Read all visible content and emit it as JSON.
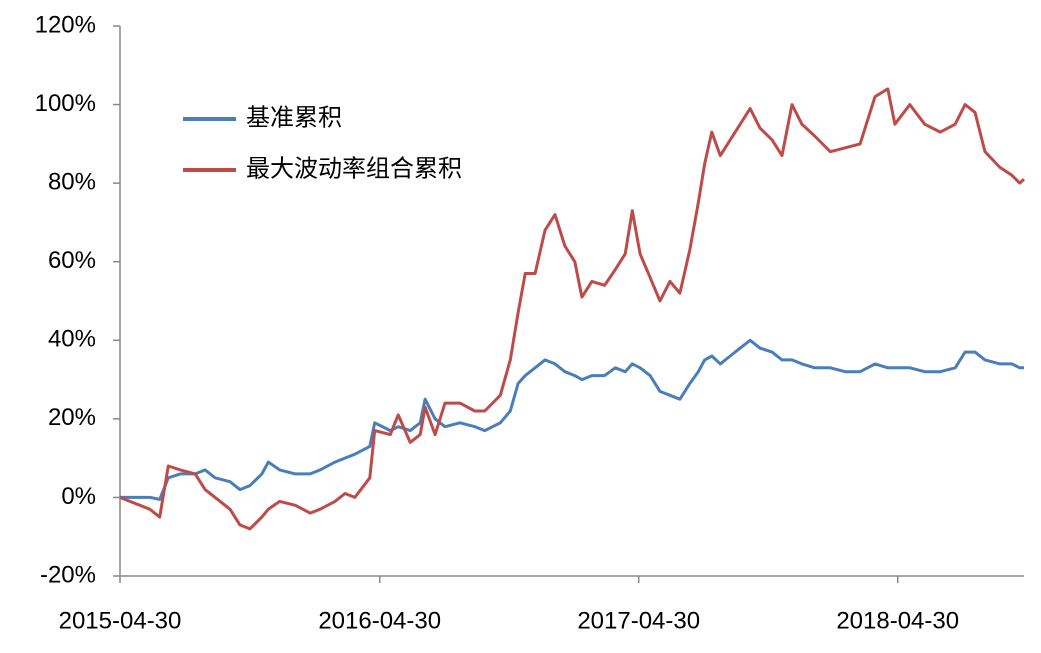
{
  "chart_data": {
    "type": "line",
    "x": [
      "2015-04-30",
      "2015-05-14",
      "2015-06-11",
      "2015-06-25",
      "2015-07-07",
      "2015-07-24",
      "2015-08-14",
      "2015-08-28",
      "2015-09-11",
      "2015-10-02",
      "2015-10-16",
      "2015-10-30",
      "2015-11-16",
      "2015-11-25",
      "2015-12-11",
      "2016-01-02",
      "2016-01-23",
      "2016-02-06",
      "2016-02-27",
      "2016-03-12",
      "2016-03-26",
      "2016-04-16",
      "2016-04-23",
      "2016-05-15",
      "2016-05-26",
      "2016-06-12",
      "2016-06-26",
      "2016-07-03",
      "2016-07-17",
      "2016-07-31",
      "2016-08-21",
      "2016-09-11",
      "2016-09-25",
      "2016-10-17",
      "2016-10-31",
      "2016-11-11",
      "2016-11-21",
      "2016-12-05",
      "2016-12-19",
      "2017-01-02",
      "2017-01-16",
      "2017-01-30",
      "2017-02-09",
      "2017-02-23",
      "2017-03-13",
      "2017-03-28",
      "2017-04-11",
      "2017-04-21",
      "2017-05-02",
      "2017-05-16",
      "2017-05-30",
      "2017-06-13",
      "2017-06-27",
      "2017-07-11",
      "2017-07-23",
      "2017-08-01",
      "2017-08-11",
      "2017-08-23",
      "2017-09-06",
      "2017-09-20",
      "2017-10-04",
      "2017-10-18",
      "2017-11-04",
      "2017-11-18",
      "2017-12-02",
      "2017-12-16",
      "2018-01-03",
      "2018-01-25",
      "2018-02-15",
      "2018-03-08",
      "2018-03-29",
      "2018-04-16",
      "2018-04-26",
      "2018-05-17",
      "2018-06-07",
      "2018-06-29",
      "2018-07-20",
      "2018-08-03",
      "2018-08-17",
      "2018-08-31",
      "2018-09-21",
      "2018-10-08",
      "2018-10-19",
      "2018-10-25"
    ],
    "series": [
      {
        "name": "基准累积",
        "color": "#4a7ebb",
        "values": [
          0,
          0,
          0,
          -0.5,
          5,
          6,
          6,
          7,
          5,
          4,
          2,
          3,
          6,
          9,
          7,
          6,
          6,
          7,
          9,
          10,
          11,
          13,
          19,
          17,
          18,
          17,
          19,
          25,
          20,
          18,
          19,
          18,
          17,
          19,
          22,
          29,
          31,
          33,
          35,
          34,
          32,
          31,
          30,
          31,
          31,
          33,
          32,
          34,
          33,
          31,
          27,
          26,
          25,
          29,
          32,
          35,
          36,
          34,
          36,
          38,
          40,
          38,
          37,
          35,
          35,
          34,
          33,
          33,
          32,
          32,
          34,
          33,
          33,
          33,
          32,
          32,
          33,
          37,
          37,
          35,
          34,
          34,
          33,
          33
        ]
      },
      {
        "name": "最大波动率组合累积",
        "color": "#be4b48",
        "values": [
          0,
          -1,
          -3,
          -5,
          8,
          7,
          6,
          2,
          0,
          -3,
          -7,
          -8,
          -5,
          -3,
          -1,
          -2,
          -4,
          -3,
          -1,
          1,
          0,
          5,
          17,
          16,
          21,
          14,
          16,
          23,
          16,
          24,
          24,
          22,
          22,
          26,
          35,
          47,
          57,
          57,
          68,
          72,
          64,
          60,
          51,
          55,
          54,
          58,
          62,
          73,
          62,
          56,
          50,
          55,
          52,
          63,
          75,
          85,
          93,
          87,
          91,
          95,
          99,
          94,
          91,
          87,
          100,
          95,
          92,
          88,
          89,
          90,
          102,
          104,
          95,
          100,
          95,
          93,
          95,
          100,
          98,
          88,
          84,
          82,
          80,
          81
        ]
      }
    ],
    "xlim": [
      "2015-04-30",
      "2018-10-25"
    ],
    "xticks": [
      "2015-04-30",
      "2016-04-30",
      "2017-04-30",
      "2018-04-30"
    ],
    "ylim": [
      -20,
      120
    ],
    "yticks": [
      {
        "value": -20,
        "label": "-20%"
      },
      {
        "value": 0,
        "label": "0%"
      },
      {
        "value": 20,
        "label": "20%"
      },
      {
        "value": 40,
        "label": "40%"
      },
      {
        "value": 60,
        "label": "60%"
      },
      {
        "value": 80,
        "label": "80%"
      },
      {
        "value": 100,
        "label": "100%"
      },
      {
        "value": 120,
        "label": "120%"
      }
    ]
  }
}
